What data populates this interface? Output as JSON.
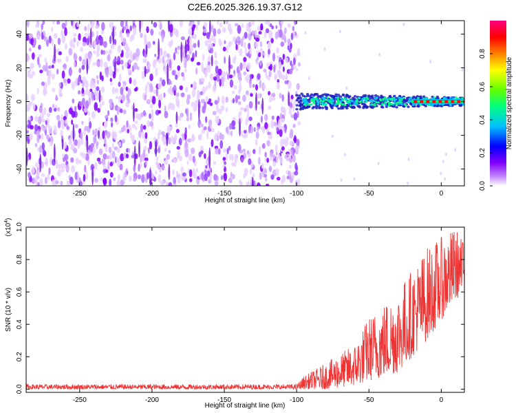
{
  "title": "C2E6.2025.326.19.37.G12",
  "chart_data": [
    {
      "type": "heatmap",
      "name": "spectrogram",
      "xlabel": "Height of straight line (km)",
      "ylabel": "Frequency (Hz)",
      "xlim": [
        -287,
        16
      ],
      "ylim": [
        -50,
        48
      ],
      "xticks": [
        -250,
        -200,
        -150,
        -100,
        -50,
        0
      ],
      "xtick_labels": [
        "-250",
        "-200",
        "-150",
        "-100",
        "-50",
        "0"
      ],
      "yticks": [
        -40,
        -20,
        0,
        20,
        40
      ],
      "ytick_labels": [
        "-40",
        "-20",
        "0",
        "20",
        "40"
      ],
      "noise_region_x": [
        -287,
        -100
      ],
      "signal_band": {
        "x": [
          -100,
          16
        ],
        "center_freq": 0,
        "width_hz": 6
      },
      "strong_line": {
        "x": [
          -20,
          16
        ],
        "freq": 0
      },
      "colorbar": {
        "label": "Normalized spectral amplitude",
        "range": [
          0.0,
          1.0
        ],
        "ticks": [
          0.0,
          0.2,
          0.4,
          0.6,
          0.8
        ],
        "tick_labels": [
          "0.0",
          "0.2",
          "0.4",
          "0.6",
          "0.8"
        ],
        "colors": [
          "#ffffff",
          "#8000ff",
          "#0000ff",
          "#00c0ff",
          "#00ff80",
          "#80ff00",
          "#ffff00",
          "#ff8000",
          "#ff0000",
          "#ff0080"
        ]
      }
    },
    {
      "type": "line",
      "name": "snr",
      "xlabel": "Height of straight line (km)",
      "ylabel": "SNR (10 * v/v)",
      "scale_label": "(x10",
      "scale_exp": "4",
      "scale_close": ")",
      "xlim": [
        -287,
        16
      ],
      "ylim": [
        -0.02,
        1.0
      ],
      "xticks": [
        -250,
        -200,
        -150,
        -100,
        -50,
        0
      ],
      "xtick_labels": [
        "-250",
        "-200",
        "-150",
        "-100",
        "-50",
        "0"
      ],
      "yticks": [
        0.0,
        0.2,
        0.4,
        0.6,
        0.8,
        1.0
      ],
      "ytick_labels": [
        "0.0",
        "0.2",
        "0.4",
        "0.6",
        "0.8",
        "1.0"
      ],
      "color": "#ee3333",
      "envelope": [
        {
          "x": -287,
          "low": 0.0,
          "high": 0.03
        },
        {
          "x": -100,
          "low": 0.0,
          "high": 0.03
        },
        {
          "x": -95,
          "low": 0.0,
          "high": 0.08
        },
        {
          "x": -80,
          "low": 0.0,
          "high": 0.16
        },
        {
          "x": -60,
          "low": 0.02,
          "high": 0.28
        },
        {
          "x": -50,
          "low": 0.05,
          "high": 0.45
        },
        {
          "x": -30,
          "low": 0.1,
          "high": 0.62
        },
        {
          "x": -10,
          "low": 0.3,
          "high": 0.88
        },
        {
          "x": 10,
          "low": 0.55,
          "high": 1.0
        },
        {
          "x": 16,
          "low": 0.6,
          "high": 0.9
        }
      ]
    }
  ]
}
